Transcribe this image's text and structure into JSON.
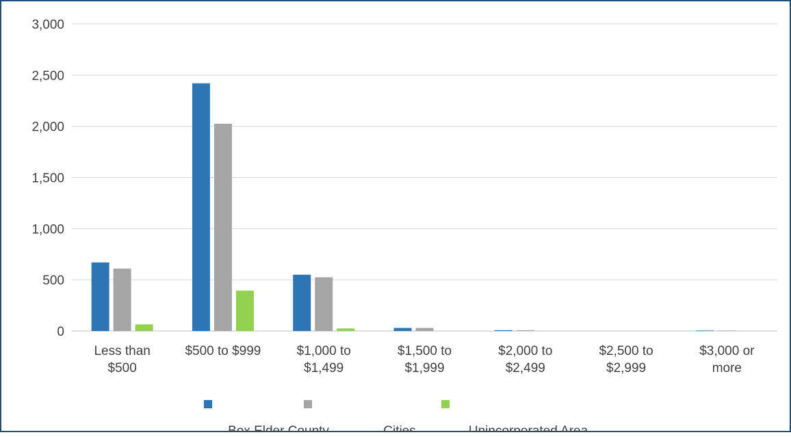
{
  "chart_data": {
    "type": "bar",
    "categories": [
      [
        "Less than",
        "$500"
      ],
      [
        "$500 to $999"
      ],
      [
        "$1,000 to",
        "$1,499"
      ],
      [
        "$1,500 to",
        "$1,999"
      ],
      [
        "$2,000 to",
        "$2,499"
      ],
      [
        "$2,500 to",
        "$2,999"
      ],
      [
        "$3,000 or",
        "more"
      ]
    ],
    "series": [
      {
        "name": "Box Elder County",
        "color": "#2e75b6",
        "values": [
          670,
          2420,
          550,
          30,
          8,
          0,
          5
        ]
      },
      {
        "name": "Cities",
        "color": "#a5a5a5",
        "values": [
          610,
          2025,
          525,
          30,
          8,
          0,
          5
        ]
      },
      {
        "name": "Unincorporated Area",
        "color": "#92d050",
        "values": [
          65,
          395,
          25,
          0,
          0,
          0,
          0
        ]
      }
    ],
    "yticks": [
      "0",
      "500",
      "1,000",
      "1,500",
      "2,000",
      "2,500",
      "3,000"
    ],
    "ylim": [
      0,
      3000
    ],
    "grid": true,
    "legend": "bottom"
  }
}
